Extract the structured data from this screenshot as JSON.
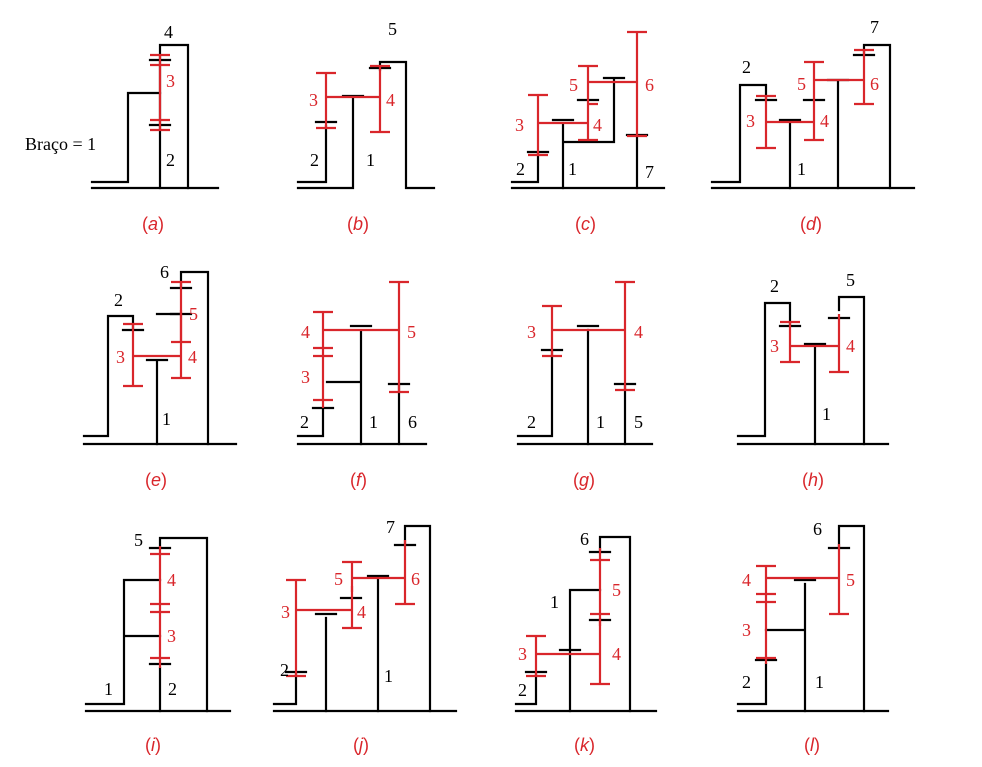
{
  "figure": {
    "arm_label": "Braço = 1",
    "panels": [
      {
        "id": "a",
        "caption_open": "(",
        "caption_letter": "a",
        "caption_close": ")",
        "labels": {
          "black": [
            "4",
            "2"
          ],
          "red": [
            "3"
          ]
        }
      },
      {
        "id": "b",
        "caption_open": "(",
        "caption_letter": "b",
        "caption_close": ")",
        "labels": {
          "black": [
            "5",
            "2",
            "1"
          ],
          "red": [
            "3",
            "4"
          ]
        }
      },
      {
        "id": "c",
        "caption_open": "(",
        "caption_letter": "c",
        "caption_close": ")",
        "labels": {
          "black": [
            "2",
            "1",
            "7"
          ],
          "red": [
            "3",
            "4",
            "5",
            "6"
          ]
        }
      },
      {
        "id": "d",
        "caption_open": "(",
        "caption_letter": "d",
        "caption_close": ")",
        "labels": {
          "black": [
            "2",
            "7",
            "1"
          ],
          "red": [
            "3",
            "4",
            "5",
            "6"
          ]
        }
      },
      {
        "id": "e",
        "caption_open": "(",
        "caption_letter": "e",
        "caption_close": ")",
        "labels": {
          "black": [
            "6",
            "2",
            "1"
          ],
          "red": [
            "5",
            "3",
            "4"
          ]
        }
      },
      {
        "id": "f",
        "caption_open": "(",
        "caption_letter": "f",
        "caption_close": ")",
        "labels": {
          "black": [
            "2",
            "1",
            "6"
          ],
          "red": [
            "4",
            "5",
            "3"
          ]
        }
      },
      {
        "id": "g",
        "caption_open": "(",
        "caption_letter": "g",
        "caption_close": ")",
        "labels": {
          "black": [
            "2",
            "1",
            "5"
          ],
          "red": [
            "3",
            "4"
          ]
        }
      },
      {
        "id": "h",
        "caption_open": "(",
        "caption_letter": "h",
        "caption_close": ")",
        "labels": {
          "black": [
            "2",
            "5",
            "1"
          ],
          "red": [
            "3",
            "4"
          ]
        }
      },
      {
        "id": "i",
        "caption_open": "(",
        "caption_letter": "i",
        "caption_close": ")",
        "labels": {
          "black": [
            "5",
            "1",
            "2"
          ],
          "red": [
            "4",
            "3"
          ]
        }
      },
      {
        "id": "j",
        "caption_open": "(",
        "caption_letter": "j",
        "caption_close": ")",
        "labels": {
          "black": [
            "7",
            "2",
            "1"
          ],
          "red": [
            "5",
            "6",
            "3",
            "4"
          ]
        }
      },
      {
        "id": "k",
        "caption_open": "(",
        "caption_letter": "k",
        "caption_close": ")",
        "labels": {
          "black": [
            "6",
            "1",
            "2"
          ],
          "red": [
            "5",
            "3",
            "4"
          ]
        }
      },
      {
        "id": "l",
        "caption_open": "(",
        "caption_letter": "l",
        "caption_close": ")",
        "labels": {
          "black": [
            "6",
            "2",
            "1"
          ],
          "red": [
            "4",
            "5",
            "3"
          ]
        }
      }
    ]
  },
  "colors": {
    "structure": "#000000",
    "gears": "#d9262b"
  }
}
